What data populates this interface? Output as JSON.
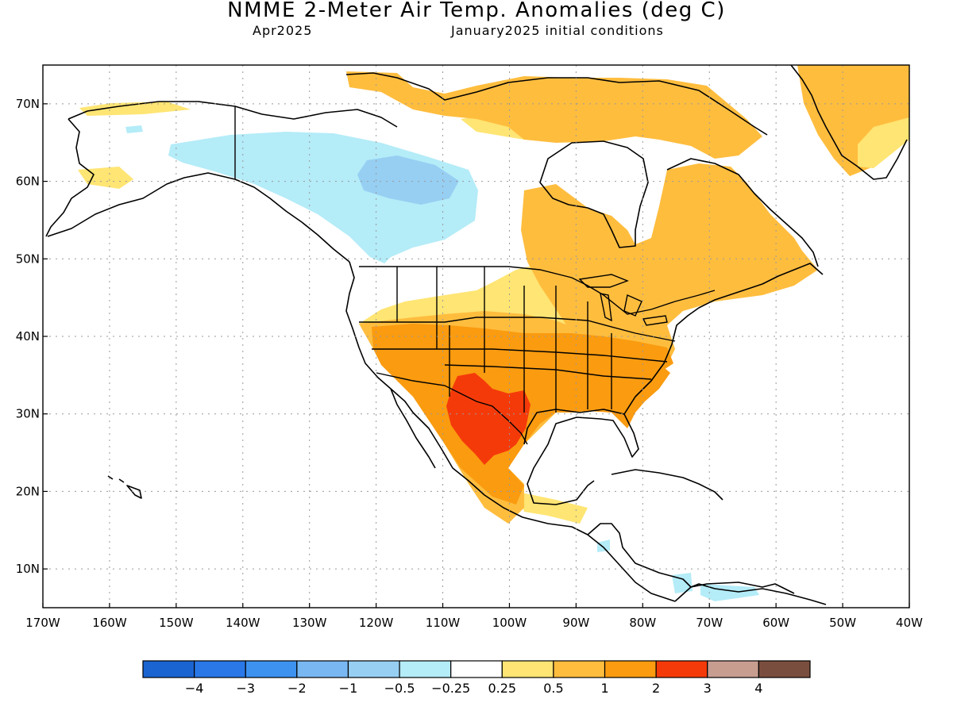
{
  "title": "NMME 2-Meter Air Temp. Anomalies (deg C)",
  "subtitle_left": "Apr2025",
  "subtitle_right": "January2025 initial conditions",
  "map": {
    "lon_range": [
      -170,
      -40
    ],
    "lat_range": [
      5,
      75
    ],
    "lat_ticks": [
      "70N",
      "60N",
      "50N",
      "40N",
      "30N",
      "20N",
      "10N"
    ],
    "lon_ticks": [
      "170W",
      "160W",
      "150W",
      "140W",
      "130W",
      "120W",
      "110W",
      "100W",
      "90W",
      "80W",
      "70W",
      "60W",
      "50W",
      "40W"
    ],
    "grid": "dotted",
    "regions": [
      {
        "name": "Alaska and Yukon",
        "category": "-0.5 to -0.25"
      },
      {
        "name": "Northwest Territories core",
        "category": "-1 to -0.5"
      },
      {
        "name": "Southwest United States",
        "category": "1 to 2"
      },
      {
        "name": "Northern Mexico and West Texas",
        "category": "2 to 3"
      },
      {
        "name": "Southeast United States",
        "category": "1 to 2"
      },
      {
        "name": "Great Lakes and Northeast",
        "category": "0.5 to 1"
      },
      {
        "name": "Quebec and Labrador",
        "category": "0.5 to 1"
      },
      {
        "name": "Greenland",
        "category": "0.5 to 1"
      }
    ]
  },
  "colorbar": {
    "colors": [
      "#1a64d2",
      "#2a78e8",
      "#3d92f0",
      "#78b7f2",
      "#97cff3",
      "#b4ecf8",
      "#ffffff",
      "#ffe573",
      "#ffbd3e",
      "#fa9b10",
      "#f53a0a",
      "#c79d90",
      "#7a4e3e"
    ],
    "labels": [
      "−4",
      "−3",
      "−2",
      "−1",
      "−0.5",
      "−0.25",
      "0.25",
      "0.5",
      "1",
      "2",
      "3",
      "4"
    ]
  }
}
